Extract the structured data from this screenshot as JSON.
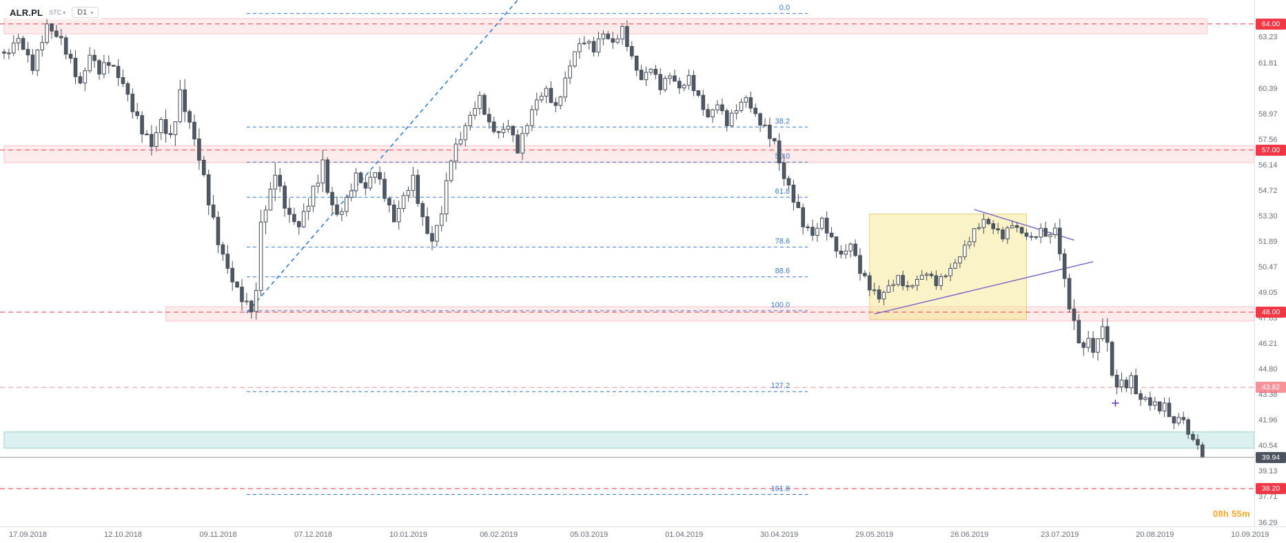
{
  "toolbar": {
    "symbol": "ALR.PL",
    "study": "STC",
    "timeframe": "D1"
  },
  "countdown": {
    "hours": "08h",
    "minutes": "55m"
  },
  "axes": {
    "y_ticks": [
      "63.23",
      "61.81",
      "60.39",
      "58.97",
      "57.56",
      "56.14",
      "54.72",
      "53.30",
      "51.89",
      "50.47",
      "49.05",
      "47.63",
      "46.21",
      "44.80",
      "43.38",
      "41.96",
      "40.54",
      "39.13",
      "37.71",
      "36.29"
    ],
    "x_ticks": [
      {
        "d": 5,
        "label": "17.09.2018"
      },
      {
        "d": 25,
        "label": "12.10.2018"
      },
      {
        "d": 45,
        "label": "09.11.2018"
      },
      {
        "d": 65,
        "label": "07.12.2018"
      },
      {
        "d": 85,
        "label": "10.01.2019"
      },
      {
        "d": 104,
        "label": "06.02.2019"
      },
      {
        "d": 123,
        "label": "05.03.2019"
      },
      {
        "d": 143,
        "label": "01.04.2019"
      },
      {
        "d": 163,
        "label": "30.04.2019"
      },
      {
        "d": 183,
        "label": "29.05.2019"
      },
      {
        "d": 203,
        "label": "26.06.2019"
      },
      {
        "d": 222,
        "label": "23.07.2019"
      },
      {
        "d": 242,
        "label": "20.08.2019"
      },
      {
        "d": 262,
        "label": "10.09.2019"
      }
    ],
    "current_price": "39.94",
    "current_price_bg": "#4c525e"
  },
  "chart_data": {
    "type": "candlestick",
    "symbol": "ALR.PL",
    "timeframe": "D1",
    "days": 253,
    "day_width": 6.9,
    "y_range": [
      36.1,
      65.33
    ],
    "last_close": 39.94,
    "price_anchors": [
      [
        0,
        62.2
      ],
      [
        3,
        63.2
      ],
      [
        6,
        61.6
      ],
      [
        9,
        63.9
      ],
      [
        12,
        63.1
      ],
      [
        14,
        61.9
      ],
      [
        16,
        60.6
      ],
      [
        18,
        62.3
      ],
      [
        20,
        61.4
      ],
      [
        22,
        61.9
      ],
      [
        25,
        60.7
      ],
      [
        27,
        59.3
      ],
      [
        29,
        58.1
      ],
      [
        31,
        57.3
      ],
      [
        33,
        58.6
      ],
      [
        35,
        57.6
      ],
      [
        37,
        60.1
      ],
      [
        39,
        58.5
      ],
      [
        41,
        56.6
      ],
      [
        43,
        54.2
      ],
      [
        45,
        51.9
      ],
      [
        47,
        50.4
      ],
      [
        49,
        49.2
      ],
      [
        51,
        48.4
      ],
      [
        52,
        48.2
      ],
      [
        53,
        49.1
      ],
      [
        54,
        53.0
      ],
      [
        56,
        54.6
      ],
      [
        57,
        55.9
      ],
      [
        58,
        54.7
      ],
      [
        60,
        53.3
      ],
      [
        62,
        52.8
      ],
      [
        64,
        54.1
      ],
      [
        66,
        55.4
      ],
      [
        67,
        56.3
      ],
      [
        68,
        54.7
      ],
      [
        70,
        53.3
      ],
      [
        72,
        54.2
      ],
      [
        74,
        55.6
      ],
      [
        76,
        54.9
      ],
      [
        78,
        55.9
      ],
      [
        80,
        54.5
      ],
      [
        82,
        53.1
      ],
      [
        84,
        54.4
      ],
      [
        86,
        55.4
      ],
      [
        88,
        53.1
      ],
      [
        90,
        51.9
      ],
      [
        92,
        53.6
      ],
      [
        94,
        56.6
      ],
      [
        96,
        57.7
      ],
      [
        98,
        58.9
      ],
      [
        100,
        59.9
      ],
      [
        102,
        58.4
      ],
      [
        104,
        57.9
      ],
      [
        106,
        58.4
      ],
      [
        108,
        57.0
      ],
      [
        110,
        58.5
      ],
      [
        112,
        59.8
      ],
      [
        114,
        60.3
      ],
      [
        116,
        59.3
      ],
      [
        118,
        60.9
      ],
      [
        120,
        62.5
      ],
      [
        122,
        63.1
      ],
      [
        124,
        62.6
      ],
      [
        126,
        63.5
      ],
      [
        128,
        62.9
      ],
      [
        130,
        63.7
      ],
      [
        132,
        62.1
      ],
      [
        134,
        60.9
      ],
      [
        136,
        61.6
      ],
      [
        138,
        60.5
      ],
      [
        140,
        61.2
      ],
      [
        142,
        60.4
      ],
      [
        144,
        61.0
      ],
      [
        146,
        59.9
      ],
      [
        148,
        58.8
      ],
      [
        150,
        59.6
      ],
      [
        152,
        58.5
      ],
      [
        154,
        59.3
      ],
      [
        156,
        59.9
      ],
      [
        158,
        58.9
      ],
      [
        160,
        58.2
      ],
      [
        162,
        57.4
      ],
      [
        163,
        56.3
      ],
      [
        164,
        55.5
      ],
      [
        166,
        54.3
      ],
      [
        168,
        52.9
      ],
      [
        170,
        52.3
      ],
      [
        172,
        53.1
      ],
      [
        174,
        52.0
      ],
      [
        176,
        51.1
      ],
      [
        178,
        51.8
      ],
      [
        180,
        50.3
      ],
      [
        182,
        49.4
      ],
      [
        184,
        48.8
      ],
      [
        186,
        49.4
      ],
      [
        188,
        49.9
      ],
      [
        190,
        49.3
      ],
      [
        192,
        49.8
      ],
      [
        194,
        50.2
      ],
      [
        196,
        49.6
      ],
      [
        198,
        50.1
      ],
      [
        200,
        50.7
      ],
      [
        202,
        51.6
      ],
      [
        204,
        52.5
      ],
      [
        206,
        53.1
      ],
      [
        208,
        52.7
      ],
      [
        210,
        52.2
      ],
      [
        212,
        52.9
      ],
      [
        214,
        52.4
      ],
      [
        216,
        52.1
      ],
      [
        218,
        52.5
      ],
      [
        220,
        52.2
      ],
      [
        221,
        52.7
      ],
      [
        222,
        51.3
      ],
      [
        223,
        49.7
      ],
      [
        224,
        48.4
      ],
      [
        225,
        47.3
      ],
      [
        226,
        46.5
      ],
      [
        227,
        45.9
      ],
      [
        228,
        46.6
      ],
      [
        229,
        45.8
      ],
      [
        230,
        46.4
      ],
      [
        231,
        47.4
      ],
      [
        232,
        46.1
      ],
      [
        233,
        44.7
      ],
      [
        234,
        43.7
      ],
      [
        235,
        44.3
      ],
      [
        236,
        43.8
      ],
      [
        237,
        44.4
      ],
      [
        238,
        43.6
      ],
      [
        239,
        43.0
      ],
      [
        240,
        43.4
      ],
      [
        241,
        42.7
      ],
      [
        242,
        43.1
      ],
      [
        243,
        42.5
      ],
      [
        244,
        42.9
      ],
      [
        245,
        42.3
      ],
      [
        246,
        41.7
      ],
      [
        247,
        42.3
      ],
      [
        248,
        41.9
      ],
      [
        249,
        41.3
      ],
      [
        250,
        40.9
      ],
      [
        251,
        40.6
      ],
      [
        252,
        39.94
      ]
    ],
    "vol_anchors": [
      [
        0,
        0.85
      ],
      [
        15,
        0.9
      ],
      [
        30,
        1.0
      ],
      [
        37,
        1.3
      ],
      [
        44,
        1.1
      ],
      [
        52,
        1.0
      ],
      [
        54,
        1.4
      ],
      [
        58,
        1.4
      ],
      [
        62,
        0.9
      ],
      [
        66,
        1.2
      ],
      [
        72,
        0.8
      ],
      [
        85,
        0.9
      ],
      [
        89,
        1.1
      ],
      [
        93,
        1.0
      ],
      [
        100,
        0.75
      ],
      [
        107,
        0.8
      ],
      [
        117,
        0.8
      ],
      [
        125,
        0.8
      ],
      [
        133,
        0.7
      ],
      [
        145,
        0.7
      ],
      [
        158,
        0.7
      ],
      [
        163,
        1.1
      ],
      [
        167,
        0.9
      ],
      [
        175,
        0.8
      ],
      [
        183,
        0.8
      ],
      [
        190,
        0.6
      ],
      [
        200,
        0.6
      ],
      [
        207,
        0.7
      ],
      [
        215,
        0.5
      ],
      [
        221,
        0.9
      ],
      [
        223,
        1.2
      ],
      [
        228,
        0.9
      ],
      [
        231,
        1.1
      ],
      [
        234,
        0.9
      ],
      [
        240,
        0.7
      ],
      [
        246,
        0.7
      ],
      [
        252,
        0.55
      ]
    ],
    "fib": {
      "d1": 51,
      "d2": 169,
      "color": "#3577c9",
      "levels": [
        {
          "pct": "0.0",
          "price": 64.58
        },
        {
          "pct": "38.2",
          "price": 58.28
        },
        {
          "pct": "50.0",
          "price": 56.33
        },
        {
          "pct": "61.8",
          "price": 54.38
        },
        {
          "pct": "78.6",
          "price": 51.61
        },
        {
          "pct": "88.6",
          "price": 49.96
        },
        {
          "pct": "100.0",
          "price": 48.08
        },
        {
          "pct": "127.2",
          "price": 43.59
        },
        {
          "pct": "161.8",
          "price": 37.88
        }
      ]
    },
    "h_lines": [
      {
        "price": 64.0,
        "label": "64.00",
        "muted": false
      },
      {
        "price": 57.0,
        "label": "57.00",
        "muted": false
      },
      {
        "price": 48.0,
        "label": "48.00",
        "muted": false
      },
      {
        "price": 43.82,
        "label": "43.82",
        "muted": true
      },
      {
        "price": 38.2,
        "label": "38.20",
        "muted": false
      }
    ],
    "zones": [
      {
        "name": "resistance-zone-64",
        "d1": 0,
        "d2": 253,
        "p1": 63.45,
        "p2": 64.3,
        "fill": "rgba(242,54,69,0.10)",
        "stroke": "rgba(242,54,69,0.25)"
      },
      {
        "name": "resistance-zone-57",
        "d1": 0,
        "d2": 263,
        "p1": 56.3,
        "p2": 57.25,
        "fill": "rgba(242,54,69,0.10)",
        "stroke": "rgba(242,54,69,0.25)"
      },
      {
        "name": "support-zone-48",
        "d1": 34,
        "d2": 263,
        "p1": 47.5,
        "p2": 48.3,
        "fill": "rgba(242,54,69,0.10)",
        "stroke": "rgba(242,54,69,0.25)"
      },
      {
        "name": "target-zone-41",
        "d1": 0,
        "d2": 263,
        "p1": 40.45,
        "p2": 41.35,
        "fill": "rgba(38,166,154,0.16)",
        "stroke": "rgba(38,166,154,0.45)"
      },
      {
        "name": "consolidation-box",
        "d1": 182,
        "d2": 215,
        "p1": 47.6,
        "p2": 53.45,
        "fill": "rgba(247,229,132,0.45)",
        "stroke": "rgba(212,175,55,0.55)"
      }
    ],
    "trendlines": [
      {
        "name": "uptrend-line",
        "d1": 51,
        "p1": 47.95,
        "d2": 108,
        "p2": 65.33,
        "color": "#2e7bd1",
        "dash": "6 5",
        "width": 1.6
      },
      {
        "name": "wedge-upper-line",
        "d1": 204,
        "p1": 53.7,
        "d2": 225,
        "p2": 52.0,
        "color": "#7460c9",
        "dash": "",
        "width": 1.4
      },
      {
        "name": "wedge-lower-line",
        "d1": 183,
        "p1": 47.9,
        "d2": 229,
        "p2": 50.8,
        "color": "#7460c9",
        "dash": "",
        "width": 1.4
      }
    ],
    "marker_plus": {
      "d": 233.7,
      "price": 42.95,
      "color": "#673ab7"
    },
    "current_price_line": {
      "price": 39.94,
      "color": "#9598a1"
    },
    "style": {
      "candle_up_fill": "#ffffff",
      "candle_down_fill": "#4f5966",
      "candle_stroke": "#434a54",
      "red": "#f23645",
      "axis_text": "#686d78",
      "countdown_color": "#f7a928"
    }
  }
}
